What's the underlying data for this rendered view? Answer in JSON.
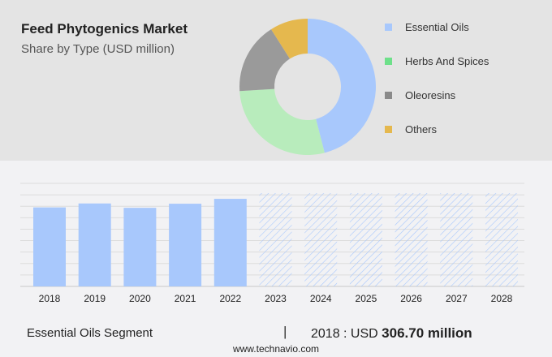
{
  "header": {
    "title": "Feed Phytogenics Market",
    "subtitle": "Share by Type (USD million)"
  },
  "colors": {
    "essential_oils": "#a8c8fc",
    "herbs": "#b8ecbc",
    "oleoresins": "#9a9a9a",
    "others": "#e5b84e",
    "legend_herbs": "#6ee08a",
    "bar": "#a8c8fc",
    "hatch": "#a8c8fc"
  },
  "chart_data": [
    {
      "type": "pie",
      "donut": true,
      "legend_position": "right",
      "series": [
        {
          "name": "Essential Oils",
          "value": 46
        },
        {
          "name": "Herbs And Spices",
          "value": 28
        },
        {
          "name": "Oleoresins",
          "value": 17
        },
        {
          "name": "Others",
          "value": 9
        }
      ]
    },
    {
      "type": "bar",
      "categories": [
        "2018",
        "2019",
        "2020",
        "2021",
        "2022",
        "2023",
        "2024",
        "2025",
        "2026",
        "2027",
        "2028"
      ],
      "values": [
        306.7,
        322,
        305,
        321,
        340,
        null,
        null,
        null,
        null,
        null,
        null
      ],
      "forecast_from": "2023",
      "grid": true,
      "ylim": [
        0,
        400
      ]
    }
  ],
  "footer": {
    "segment": "Essential Oils Segment",
    "separator": "|",
    "year_label": "2018 : USD ",
    "value": "306.70 million",
    "url": "www.technavio.com"
  }
}
